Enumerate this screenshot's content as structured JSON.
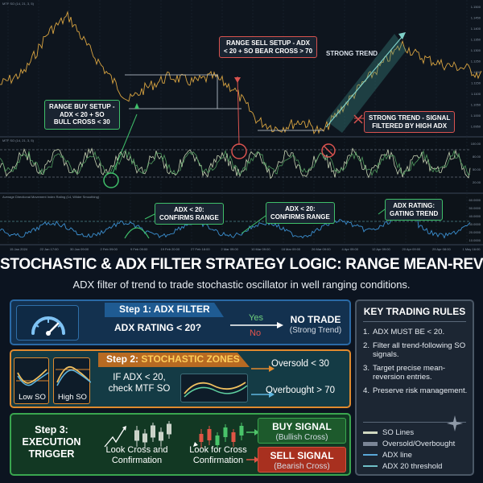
{
  "chart": {
    "price_pane_header": "MTF SO (14, 21, 3, 5)",
    "osc_pane_header": "MTF SO (14, 21, 3, 5)",
    "adx_pane_header": "Average Directional Movement Index Rating (14, Wilder Smoothing)",
    "price_ticks": [
      "1.1500",
      "1.1450",
      "1.1400",
      "1.1350",
      "1.1300",
      "1.1250",
      "1.1200",
      "1.1150",
      "1.1100",
      "1.1050",
      "1.1000",
      "1.0950"
    ],
    "osc_ticks": [
      "100.00",
      "80.00",
      "50.00",
      "20.00"
    ],
    "adx_ticks": [
      "60.0000",
      "50.0000",
      "40.0000",
      "30.0000",
      "20.0000",
      "10.0000"
    ],
    "time_ticks": [
      "15 Jan 2024",
      "22 Jan 17:00",
      "30 Jan 09:00",
      "2 Feb 09:00",
      "9 Feb 09:00",
      "19 Feb 20:00",
      "27 Feb 18:00",
      "2 Mar 09:00",
      "10 Mar 09:00",
      "18 Mar 09:00",
      "26 Mar 09:00",
      "4 Apr 09:00",
      "12 Apr 09:00",
      "20 Apr 09:00",
      "29 Apr 08:00",
      "1 May 16:00"
    ],
    "callouts": {
      "range_buy": "RANGE BUY SETUP -\nADX < 20 + SO\nBULL CROSS < 30",
      "range_sell": "RANGE SELL SETUP - ADX\n< 20 + SO BEAR CROSS > 70",
      "strong_trend_label": "STRONG TREND",
      "strong_trend_filter": "STRONG TREND - SIGNAL\nFILTERED BY HIGH ADX",
      "adx_confirm_1": "ADX < 20:\nCONFIRMS RANGE",
      "adx_confirm_2": "ADX < 20:\nCONFIRMS RANGE",
      "adx_rating": "ADX RATING:\nGATING TREND"
    }
  },
  "title": "STOCHASTIC & ADX FILTER STRATEGY LOGIC: RANGE MEAN-REVERSION",
  "subtitle": "ADX filter of trend to trade stochastic oscillator in well ranging conditions.",
  "step1": {
    "step_label": "Step 1:",
    "step_name": "ADX FILTER",
    "question": "ADX RATING < 20?",
    "yes": "Yes",
    "no": "No",
    "result_title": "NO TRADE",
    "result_sub": "(Strong Trend)"
  },
  "step2": {
    "step_label": "Step 2:",
    "step_name": "STOCHASTIC ZONES",
    "low_so": "Low SO",
    "high_so": "High SO",
    "condition_line1": "IF ADX < 20,",
    "condition_line2": "check MTF SO",
    "oversold": "Oversold < 30",
    "overbought": "Overbought > 70"
  },
  "step3": {
    "title_line1": "Step 3:",
    "title_line2": "EXECUTION",
    "title_line3": "TRIGGER",
    "look_cross": "Look Cross and\nConfirmation",
    "look_for_cross": "Look for Cross\nConfirmation",
    "buy_signal": "BUY SIGNAL",
    "buy_sub": "(Bullish Cross)",
    "sell_signal": "SELL SIGNAL",
    "sell_sub": "(Bearish Cross)"
  },
  "rules": {
    "title": "KEY TRADING RULES",
    "items": [
      {
        "num": "1.",
        "text": "ADX MUST BE < 20."
      },
      {
        "num": "2.",
        "text": "Filter all trend-following SO signals."
      },
      {
        "num": "3.",
        "text": "Target precise mean-reversion entries."
      },
      {
        "num": "4.",
        "text": "Preserve risk management."
      }
    ],
    "legend": [
      {
        "label": "SO Lines",
        "color": "#cfd8c0"
      },
      {
        "label": "Oversold/Overbought",
        "color": "#7a8596"
      },
      {
        "label": "ADX line",
        "color": "#5aa7d8"
      },
      {
        "label": "ADX 20 threshold",
        "color": "#6fc0c8"
      }
    ]
  },
  "colors": {
    "step1_border": "#2a6aa6",
    "step2_border": "#e08a2e",
    "step3_border": "#3aa64f",
    "buy": "#2e8f45",
    "sell": "#c0392b"
  }
}
